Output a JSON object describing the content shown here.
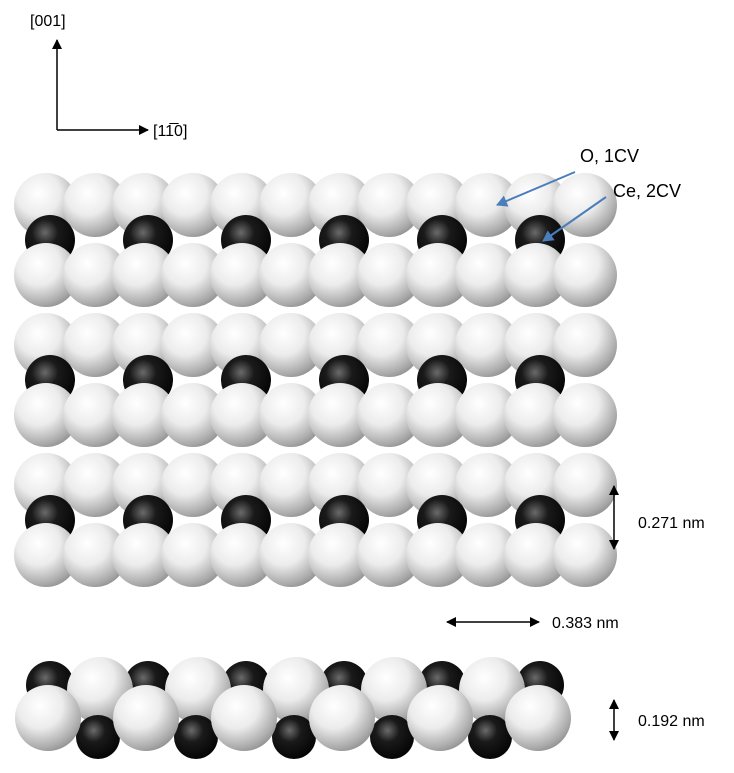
{
  "axes": {
    "vertical": "[001]",
    "horizontal": "[11̅0]"
  },
  "labels": {
    "oxygen": "O, 1CV",
    "cerium": "Ce, 2CV"
  },
  "dimensions": {
    "vertical_top": "0.271 nm",
    "horizontal": "0.383 nm",
    "vertical_side": "0.192 nm"
  }
}
